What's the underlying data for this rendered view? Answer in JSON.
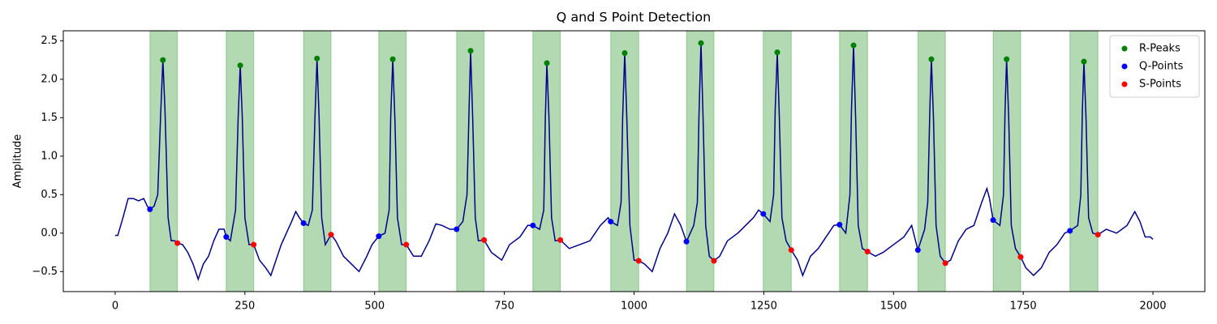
{
  "chart_data": {
    "type": "line",
    "title": "Q and S Point Detection",
    "y_label": "Amplitude",
    "xlim": [
      -100,
      2100
    ],
    "ylim": [
      -0.76,
      2.63
    ],
    "xticks": [
      0,
      250,
      500,
      750,
      1000,
      1250,
      1500,
      1750,
      2000
    ],
    "yticks": [
      {
        "value": -0.5,
        "label": "−0.5"
      },
      {
        "value": 0,
        "label": "0.0"
      },
      0.5,
      {
        "value": 1,
        "label": "1.0"
      },
      1.5,
      {
        "value": 2,
        "label": "2.0"
      },
      2.5
    ],
    "legend": "upper right",
    "regions": {
      "color": "#008000",
      "spans": [
        [
          67,
          120
        ],
        [
          214,
          267
        ],
        [
          363,
          416
        ],
        [
          508,
          561
        ],
        [
          658,
          711
        ],
        [
          805,
          858
        ],
        [
          955,
          1009
        ],
        [
          1101,
          1154
        ],
        [
          1249,
          1303
        ],
        [
          1396,
          1450
        ],
        [
          1547,
          1600
        ],
        [
          1692,
          1745
        ],
        [
          1840,
          1894
        ]
      ]
    },
    "signal": {
      "color": "#00008b",
      "x": [
        0,
        5,
        15,
        25,
        35,
        45,
        55,
        62,
        67,
        75,
        82,
        88,
        92,
        96,
        102,
        108,
        115,
        120,
        130,
        140,
        150,
        160,
        170,
        180,
        190,
        200,
        210,
        214,
        222,
        232,
        237,
        241,
        245,
        250,
        258,
        267,
        278,
        290,
        300,
        310,
        320,
        330,
        340,
        348,
        355,
        363,
        372,
        380,
        385,
        389,
        393,
        398,
        405,
        416,
        425,
        440,
        455,
        470,
        485,
        495,
        508,
        520,
        528,
        531,
        535,
        539,
        544,
        552,
        561,
        575,
        590,
        605,
        618,
        630,
        645,
        658,
        670,
        678,
        682,
        685,
        689,
        694,
        700,
        711,
        725,
        745,
        760,
        780,
        795,
        805,
        818,
        826,
        829,
        832,
        836,
        841,
        848,
        858,
        875,
        895,
        915,
        935,
        950,
        955,
        968,
        975,
        978,
        982,
        986,
        992,
        1000,
        1009,
        1020,
        1035,
        1050,
        1065,
        1078,
        1090,
        1101,
        1115,
        1122,
        1125,
        1129,
        1133,
        1138,
        1145,
        1154,
        1165,
        1180,
        1200,
        1215,
        1230,
        1240,
        1249,
        1262,
        1269,
        1272,
        1276,
        1280,
        1285,
        1293,
        1303,
        1315,
        1325,
        1340,
        1355,
        1370,
        1385,
        1396,
        1408,
        1416,
        1419,
        1423,
        1427,
        1432,
        1440,
        1450,
        1465,
        1480,
        1500,
        1520,
        1535,
        1547,
        1560,
        1566,
        1570,
        1573,
        1577,
        1582,
        1590,
        1600,
        1610,
        1625,
        1640,
        1655,
        1670,
        1680,
        1685,
        1692,
        1705,
        1712,
        1715,
        1718,
        1722,
        1727,
        1735,
        1745,
        1755,
        1770,
        1785,
        1800,
        1815,
        1830,
        1840,
        1855,
        1861,
        1864,
        1867,
        1871,
        1876,
        1884,
        1894,
        1910,
        1930,
        1950,
        1965,
        1975,
        1985,
        1995,
        2000
      ],
      "values": [
        -0.03,
        -0.03,
        0.2,
        0.45,
        0.45,
        0.42,
        0.45,
        0.35,
        0.31,
        0.35,
        0.5,
        1.6,
        2.25,
        1.6,
        0.2,
        -0.1,
        -0.1,
        -0.13,
        -0.15,
        -0.25,
        -0.4,
        -0.6,
        -0.4,
        -0.3,
        -0.1,
        0.05,
        0.05,
        -0.05,
        -0.1,
        0.3,
        1.5,
        2.18,
        1.5,
        0.2,
        -0.15,
        -0.15,
        -0.35,
        -0.45,
        -0.55,
        -0.35,
        -0.15,
        0,
        0.15,
        0.28,
        0.2,
        0.13,
        0.1,
        0.3,
        1.5,
        2.27,
        1.5,
        0.2,
        -0.15,
        -0.02,
        -0.1,
        -0.3,
        -0.4,
        -0.5,
        -0.3,
        -0.15,
        -0.04,
        0,
        0.3,
        1.5,
        2.26,
        1.5,
        0.2,
        -0.15,
        -0.15,
        -0.3,
        -0.3,
        -0.1,
        0.12,
        0.1,
        0.05,
        0.05,
        0.15,
        0.5,
        1.6,
        2.37,
        1.5,
        0.2,
        -0.1,
        -0.09,
        -0.25,
        -0.35,
        -0.15,
        -0.05,
        0.1,
        0.1,
        0.05,
        0.3,
        1.5,
        2.21,
        1.5,
        0.2,
        -0.1,
        -0.09,
        -0.2,
        -0.15,
        -0.1,
        0.1,
        0.2,
        0.15,
        0.1,
        0.4,
        1.5,
        2.34,
        1.5,
        0.1,
        -0.35,
        -0.36,
        -0.4,
        -0.5,
        -0.2,
        0,
        0.25,
        0.1,
        -0.11,
        0.1,
        0.4,
        1.5,
        2.47,
        1.5,
        0.1,
        -0.3,
        -0.36,
        -0.3,
        -0.1,
        0,
        0.1,
        0.2,
        0.3,
        0.25,
        0.15,
        0.5,
        1.6,
        2.35,
        1.5,
        0.2,
        -0.1,
        -0.22,
        -0.35,
        -0.55,
        -0.3,
        -0.2,
        -0.05,
        0.1,
        0.11,
        0,
        0.5,
        1.6,
        2.44,
        1.5,
        0.1,
        -0.2,
        -0.24,
        -0.3,
        -0.25,
        -0.15,
        -0.05,
        0.1,
        -0.22,
        0.05,
        0.4,
        1.6,
        2.26,
        1.5,
        0.1,
        -0.3,
        -0.39,
        -0.35,
        -0.1,
        0.05,
        0.1,
        0.4,
        0.58,
        0.45,
        0.17,
        0.1,
        0.5,
        1.6,
        2.26,
        1.5,
        0.1,
        -0.2,
        -0.31,
        -0.45,
        -0.55,
        -0.45,
        -0.25,
        -0.15,
        0,
        0.03,
        0.1,
        0.5,
        1.6,
        2.23,
        1.5,
        0.2,
        0,
        -0.02,
        0.05,
        0,
        0.1,
        0.28,
        0.15,
        -0.05,
        -0.05,
        -0.08
      ]
    },
    "series": [
      {
        "name": "R-Peaks",
        "color": "#008000",
        "x": [
          92,
          241,
          389,
          535,
          685,
          832,
          982,
          1129,
          1276,
          1423,
          1573,
          1718,
          1867
        ],
        "values": [
          2.25,
          2.18,
          2.27,
          2.26,
          2.37,
          2.21,
          2.34,
          2.47,
          2.35,
          2.44,
          2.26,
          2.26,
          2.23
        ]
      },
      {
        "name": "Q-Points",
        "color": "#0000ff",
        "x": [
          67,
          214,
          363,
          508,
          658,
          805,
          955,
          1101,
          1249,
          1396,
          1547,
          1692,
          1840
        ],
        "values": [
          0.31,
          -0.05,
          0.13,
          -0.04,
          0.05,
          0.1,
          0.15,
          -0.11,
          0.25,
          0.11,
          -0.22,
          0.17,
          0.03
        ]
      },
      {
        "name": "S-Points",
        "color": "#ff0000",
        "x": [
          120,
          267,
          416,
          561,
          711,
          858,
          1009,
          1154,
          1303,
          1450,
          1600,
          1745,
          1894
        ],
        "values": [
          -0.13,
          -0.15,
          -0.02,
          -0.15,
          -0.09,
          -0.09,
          -0.36,
          -0.36,
          -0.22,
          -0.24,
          -0.39,
          -0.31,
          -0.02
        ]
      }
    ]
  }
}
